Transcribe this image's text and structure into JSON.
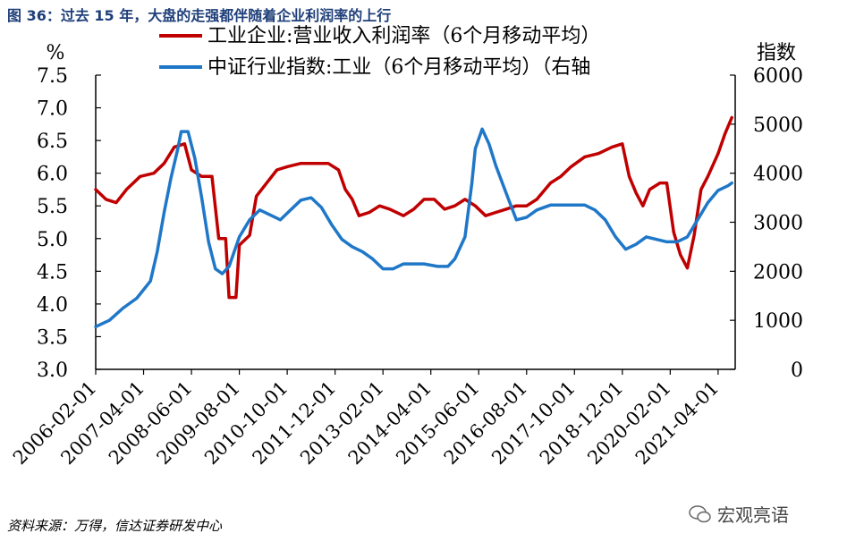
{
  "title": "图 36：过去 15 年，大盘的走强都伴随着企业利润率的上行",
  "source": "资料来源：万得，信达证券研发中心",
  "watermark": "宏观亮语",
  "colors": {
    "series_left": "#c00000",
    "series_right": "#1f77c8",
    "title": "#1f3f7a"
  },
  "chart_data": {
    "type": "line",
    "left_axis_unit": "%",
    "ylim_left": [
      3.0,
      7.5
    ],
    "yticks_left": [
      "3.0",
      "3.5",
      "4.0",
      "4.5",
      "5.0",
      "5.5",
      "6.0",
      "6.5",
      "7.0",
      "7.5"
    ],
    "ylim_right": [
      0,
      6000
    ],
    "yticks_right": [
      "0",
      "1000",
      "2000",
      "3000",
      "4000",
      "5000",
      "6000"
    ],
    "xlim": [
      "2006-02-01",
      "2021-09-01"
    ],
    "xticks": [
      "2006-02-01",
      "2007-04-01",
      "2008-06-01",
      "2009-08-01",
      "2010-10-01",
      "2011-12-01",
      "2013-02-01",
      "2014-04-01",
      "2015-06-01",
      "2016-08-01",
      "2017-10-01",
      "2018-12-01",
      "2020-02-01",
      "2021-04-01"
    ],
    "legend_position": "top",
    "series": [
      {
        "name": "工业企业:营业收入利润率（6个月移动平均）",
        "axis": "left",
        "points": [
          [
            "2006-02-01",
            5.75
          ],
          [
            "2006-05-01",
            5.6
          ],
          [
            "2006-08-01",
            5.55
          ],
          [
            "2006-11-01",
            5.75
          ],
          [
            "2007-03-01",
            5.95
          ],
          [
            "2007-07-01",
            6.0
          ],
          [
            "2007-10-01",
            6.15
          ],
          [
            "2008-01-01",
            6.4
          ],
          [
            "2008-04-01",
            6.45
          ],
          [
            "2008-06-01",
            6.05
          ],
          [
            "2008-09-01",
            5.95
          ],
          [
            "2008-12-01",
            5.95
          ],
          [
            "2009-02-01",
            5.0
          ],
          [
            "2009-04-01",
            5.0
          ],
          [
            "2009-05-01",
            4.1
          ],
          [
            "2009-07-01",
            4.1
          ],
          [
            "2009-08-01",
            4.9
          ],
          [
            "2009-11-01",
            5.05
          ],
          [
            "2010-01-01",
            5.65
          ],
          [
            "2010-04-01",
            5.85
          ],
          [
            "2010-07-01",
            6.05
          ],
          [
            "2010-10-01",
            6.1
          ],
          [
            "2011-02-01",
            6.15
          ],
          [
            "2011-06-01",
            6.15
          ],
          [
            "2011-10-01",
            6.15
          ],
          [
            "2012-01-01",
            6.05
          ],
          [
            "2012-03-01",
            5.75
          ],
          [
            "2012-05-01",
            5.6
          ],
          [
            "2012-07-01",
            5.35
          ],
          [
            "2012-10-01",
            5.4
          ],
          [
            "2013-01-01",
            5.5
          ],
          [
            "2013-04-01",
            5.45
          ],
          [
            "2013-08-01",
            5.35
          ],
          [
            "2013-11-01",
            5.45
          ],
          [
            "2014-02-01",
            5.6
          ],
          [
            "2014-05-01",
            5.6
          ],
          [
            "2014-08-01",
            5.45
          ],
          [
            "2014-11-01",
            5.5
          ],
          [
            "2015-02-01",
            5.6
          ],
          [
            "2015-05-01",
            5.5
          ],
          [
            "2015-08-01",
            5.35
          ],
          [
            "2015-11-01",
            5.4
          ],
          [
            "2016-02-01",
            5.45
          ],
          [
            "2016-05-01",
            5.5
          ],
          [
            "2016-08-01",
            5.5
          ],
          [
            "2016-11-01",
            5.6
          ],
          [
            "2017-03-01",
            5.85
          ],
          [
            "2017-06-01",
            5.95
          ],
          [
            "2017-09-01",
            6.1
          ],
          [
            "2018-01-01",
            6.25
          ],
          [
            "2018-05-01",
            6.3
          ],
          [
            "2018-09-01",
            6.4
          ],
          [
            "2018-12-01",
            6.45
          ],
          [
            "2019-02-01",
            5.95
          ],
          [
            "2019-04-01",
            5.7
          ],
          [
            "2019-06-01",
            5.5
          ],
          [
            "2019-08-01",
            5.75
          ],
          [
            "2019-11-01",
            5.85
          ],
          [
            "2020-01-01",
            5.85
          ],
          [
            "2020-03-01",
            5.1
          ],
          [
            "2020-05-01",
            4.75
          ],
          [
            "2020-07-01",
            4.55
          ],
          [
            "2020-09-01",
            5.05
          ],
          [
            "2020-11-01",
            5.75
          ],
          [
            "2021-01-01",
            5.95
          ],
          [
            "2021-04-01",
            6.3
          ],
          [
            "2021-06-01",
            6.6
          ],
          [
            "2021-08-01",
            6.85
          ]
        ]
      },
      {
        "name": "中证行业指数:工业（6个月移动平均）（右轴",
        "axis": "right",
        "points": [
          [
            "2006-02-01",
            870
          ],
          [
            "2006-06-01",
            1000
          ],
          [
            "2006-10-01",
            1250
          ],
          [
            "2007-02-01",
            1450
          ],
          [
            "2007-06-01",
            1800
          ],
          [
            "2007-08-01",
            2400
          ],
          [
            "2007-10-01",
            3200
          ],
          [
            "2007-12-01",
            3900
          ],
          [
            "2008-02-01",
            4500
          ],
          [
            "2008-03-01",
            4850
          ],
          [
            "2008-05-01",
            4850
          ],
          [
            "2008-07-01",
            4300
          ],
          [
            "2008-09-01",
            3500
          ],
          [
            "2008-11-01",
            2600
          ],
          [
            "2009-01-01",
            2050
          ],
          [
            "2009-03-01",
            1950
          ],
          [
            "2009-05-01",
            2100
          ],
          [
            "2009-08-01",
            2700
          ],
          [
            "2009-11-01",
            3050
          ],
          [
            "2010-02-01",
            3250
          ],
          [
            "2010-05-01",
            3150
          ],
          [
            "2010-08-01",
            3050
          ],
          [
            "2010-11-01",
            3250
          ],
          [
            "2011-02-01",
            3450
          ],
          [
            "2011-05-01",
            3500
          ],
          [
            "2011-08-01",
            3300
          ],
          [
            "2011-11-01",
            2950
          ],
          [
            "2012-02-01",
            2650
          ],
          [
            "2012-05-01",
            2500
          ],
          [
            "2012-08-01",
            2400
          ],
          [
            "2012-11-01",
            2250
          ],
          [
            "2013-02-01",
            2050
          ],
          [
            "2013-05-01",
            2050
          ],
          [
            "2013-08-01",
            2150
          ],
          [
            "2013-11-01",
            2150
          ],
          [
            "2014-02-01",
            2150
          ],
          [
            "2014-06-01",
            2100
          ],
          [
            "2014-09-01",
            2100
          ],
          [
            "2014-11-01",
            2250
          ],
          [
            "2015-02-01",
            2700
          ],
          [
            "2015-04-01",
            3800
          ],
          [
            "2015-05-01",
            4500
          ],
          [
            "2015-07-01",
            4900
          ],
          [
            "2015-09-01",
            4600
          ],
          [
            "2015-11-01",
            4150
          ],
          [
            "2016-02-01",
            3600
          ],
          [
            "2016-05-01",
            3050
          ],
          [
            "2016-08-01",
            3100
          ],
          [
            "2016-11-01",
            3250
          ],
          [
            "2017-03-01",
            3350
          ],
          [
            "2017-07-01",
            3350
          ],
          [
            "2017-10-01",
            3350
          ],
          [
            "2018-01-01",
            3350
          ],
          [
            "2018-04-01",
            3250
          ],
          [
            "2018-07-01",
            3050
          ],
          [
            "2018-10-01",
            2700
          ],
          [
            "2019-01-01",
            2450
          ],
          [
            "2019-04-01",
            2550
          ],
          [
            "2019-07-01",
            2700
          ],
          [
            "2019-10-01",
            2650
          ],
          [
            "2020-01-01",
            2600
          ],
          [
            "2020-04-01",
            2600
          ],
          [
            "2020-07-01",
            2700
          ],
          [
            "2020-10-01",
            3050
          ],
          [
            "2021-01-01",
            3400
          ],
          [
            "2021-04-01",
            3650
          ],
          [
            "2021-07-01",
            3750
          ],
          [
            "2021-08-01",
            3800
          ]
        ]
      }
    ]
  }
}
